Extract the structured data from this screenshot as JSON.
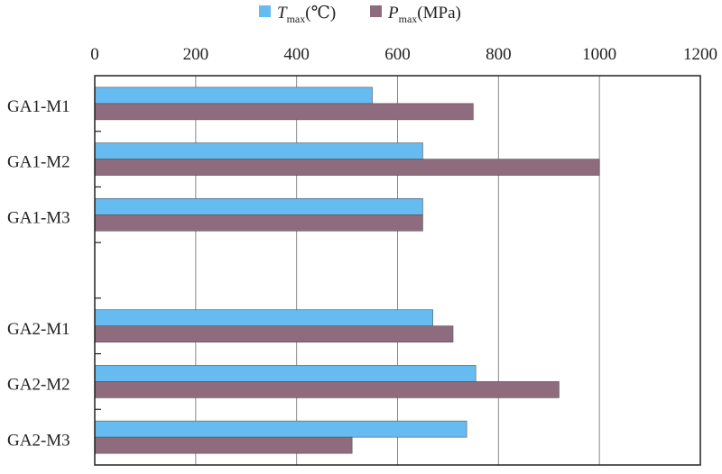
{
  "chart_data": {
    "type": "bar",
    "orientation": "horizontal",
    "categories": [
      "GA1-M1",
      "GA1-M2",
      "GA1-M3",
      "",
      "GA2-M1",
      "GA2-M2",
      "GA2-M3"
    ],
    "series": [
      {
        "name": "T_max(℃)",
        "name_main": "T",
        "name_sub": "max",
        "name_suffix": "(℃)",
        "color": "#66bbf0",
        "values": [
          550,
          650,
          650,
          null,
          670,
          755,
          737
        ]
      },
      {
        "name": "P_max(MPa)",
        "name_main": "P",
        "name_sub": "max",
        "name_suffix": "(MPa)",
        "color": "#8f6b7e",
        "values": [
          750,
          1000,
          650,
          null,
          710,
          920,
          510
        ]
      }
    ],
    "xlim": [
      0,
      1200
    ],
    "xticks": [
      0,
      200,
      400,
      600,
      800,
      1000,
      1200
    ],
    "x_axis_position": "top",
    "grid": "vertical",
    "legend_position": "top"
  }
}
